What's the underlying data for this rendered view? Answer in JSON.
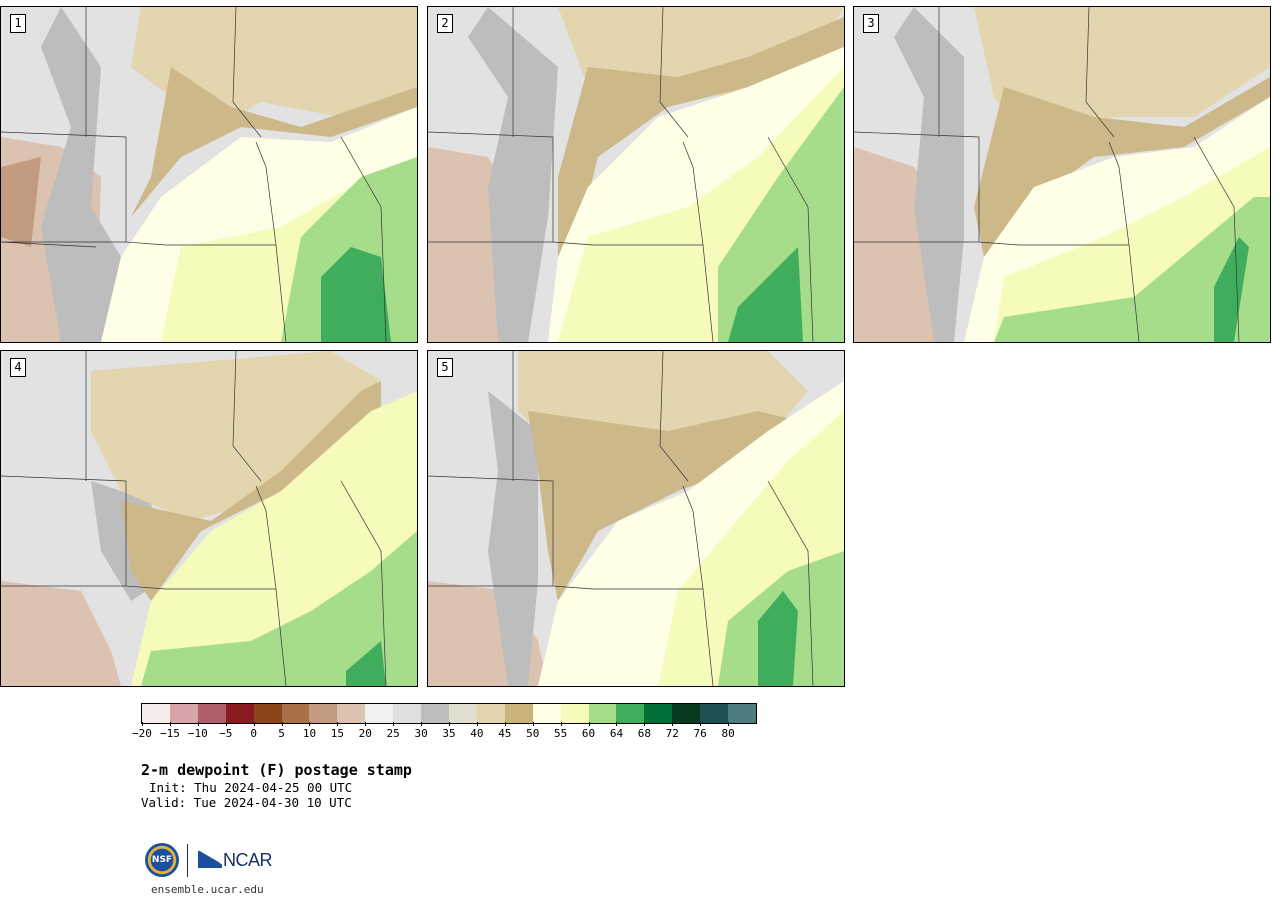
{
  "panels": [
    {
      "label": "1"
    },
    {
      "label": "2"
    },
    {
      "label": "3"
    },
    {
      "label": "4"
    },
    {
      "label": "5"
    }
  ],
  "colorbar": {
    "colors": [
      "#f5ecec",
      "#d7a4a8",
      "#b0606a",
      "#8a1a22",
      "#8b4518",
      "#a8714a",
      "#c39b80",
      "#dcc2b0",
      "#f1f1f1",
      "#e0e0e0",
      "#bdbdbd",
      "#e0dfd0",
      "#e3d5ad",
      "#cbb27a",
      "#fffee6",
      "#f6faba",
      "#a6dd8b",
      "#40ad5c",
      "#03703a",
      "#083a20",
      "#1d5152",
      "#4e7d80"
    ],
    "tick_labels": [
      "−20",
      "−15",
      "−10",
      "−5",
      "0",
      "5",
      "10",
      "15",
      "20",
      "25",
      "30",
      "35",
      "40",
      "45",
      "50",
      "55",
      "60",
      "64",
      "68",
      "72",
      "76",
      "80"
    ]
  },
  "title": "2-m dewpoint (F) postage stamp",
  "init": "Init: Thu 2024-04-25 00 UTC",
  "valid": "Valid: Tue 2024-04-30 10 UTC",
  "logo": {
    "nsf_text": "NSF",
    "ncar_text": "NCAR"
  },
  "footer_url": "ensemble.ucar.edu",
  "map_colors": {
    "dry_brown": "#cdb88a",
    "tan": "#e3d5ad",
    "gray_light": "#e2e2e2",
    "gray_mid": "#bdbdbd",
    "pink_brown": "#dcc2b0",
    "cream": "#fffee6",
    "pale_yellow": "#f6faba",
    "light_green": "#a6dd8b",
    "green": "#40ad5c",
    "border": "#333333"
  }
}
